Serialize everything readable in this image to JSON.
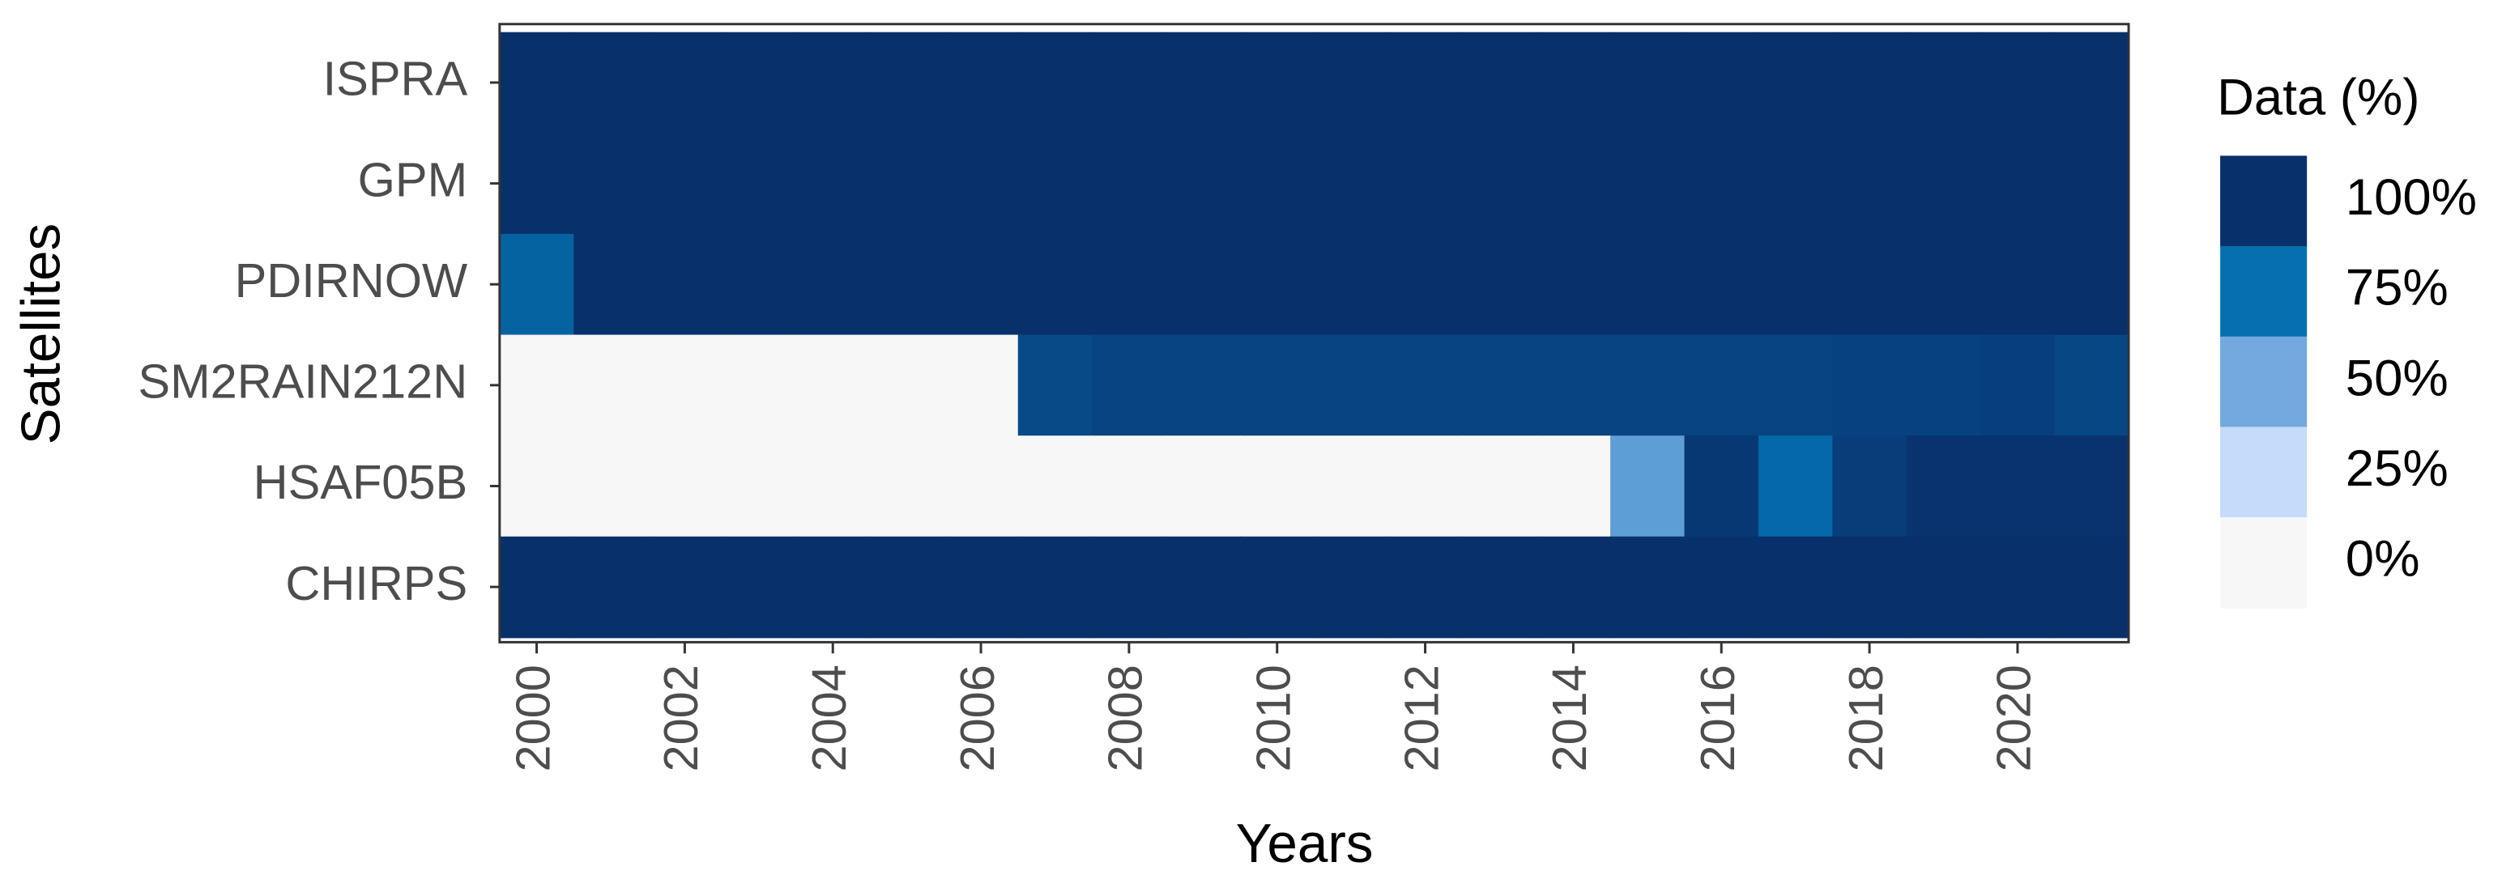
{
  "chart_data": {
    "type": "heatmap",
    "x_label": "Years",
    "y_label": "Satellites",
    "legend_title": "Data (%)",
    "x": [
      2000,
      2001,
      2002,
      2003,
      2004,
      2005,
      2006,
      2007,
      2008,
      2009,
      2010,
      2011,
      2012,
      2013,
      2014,
      2015,
      2016,
      2017,
      2018,
      2019,
      2020,
      2021
    ],
    "categories": [
      "ISPRA",
      "GPM",
      "PDIRNOW",
      "SM2RAIN212N",
      "HSAF05B",
      "CHIRPS"
    ],
    "values": [
      [
        100,
        100,
        100,
        100,
        100,
        100,
        100,
        100,
        100,
        100,
        100,
        100,
        100,
        100,
        100,
        100,
        100,
        100,
        100,
        100,
        100,
        100
      ],
      [
        100,
        100,
        100,
        100,
        100,
        100,
        100,
        100,
        100,
        100,
        100,
        100,
        100,
        100,
        100,
        100,
        100,
        100,
        100,
        100,
        100,
        100
      ],
      [
        80,
        100,
        100,
        100,
        100,
        100,
        100,
        100,
        100,
        100,
        100,
        100,
        100,
        100,
        100,
        100,
        100,
        100,
        100,
        100,
        100,
        100
      ],
      [
        0,
        0,
        0,
        0,
        0,
        0,
        0,
        90,
        92,
        92,
        92,
        92,
        92,
        92,
        92,
        92,
        92,
        92,
        93,
        93,
        94,
        91
      ],
      [
        0,
        0,
        0,
        0,
        0,
        0,
        0,
        0,
        0,
        0,
        0,
        0,
        0,
        0,
        0,
        55,
        97,
        78,
        95,
        99,
        99,
        99
      ],
      [
        100,
        100,
        100,
        100,
        100,
        100,
        100,
        100,
        100,
        100,
        100,
        100,
        100,
        100,
        100,
        100,
        100,
        100,
        100,
        100,
        100,
        100
      ]
    ],
    "xlim": [
      1999.5,
      2021.5
    ],
    "xticks": [
      2000,
      2002,
      2004,
      2006,
      2008,
      2010,
      2012,
      2014,
      2016,
      2018,
      2020
    ],
    "legend_ticks": [
      {
        "value": 100,
        "label": "100%"
      },
      {
        "value": 75,
        "label": "75%"
      },
      {
        "value": 50,
        "label": "50%"
      },
      {
        "value": 25,
        "label": "25%"
      },
      {
        "value": 0,
        "label": "0%"
      }
    ],
    "colors": [
      "#08306b",
      "#0570b0",
      "#74a9e0",
      "#c6dbf9",
      "#f7f7f7"
    ],
    "legend_position": "right"
  }
}
